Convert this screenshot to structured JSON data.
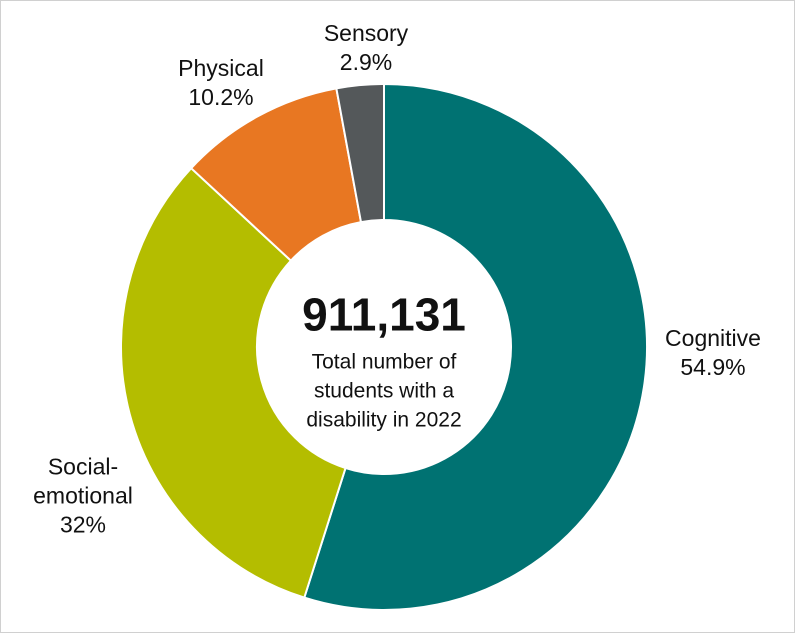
{
  "chart_data": {
    "type": "donut",
    "categories": [
      "Cognitive",
      "Social-emotional",
      "Physical",
      "Sensory"
    ],
    "values": [
      54.9,
      32,
      10.2,
      2.9
    ],
    "value_labels": [
      "54.9%",
      "32%",
      "10.2%",
      "2.9%"
    ],
    "colors": [
      "#007272",
      "#b4bd00",
      "#e87722",
      "#54585a"
    ],
    "center_value": "911,131",
    "center_text": "Total number of students with a disability in 2022"
  }
}
